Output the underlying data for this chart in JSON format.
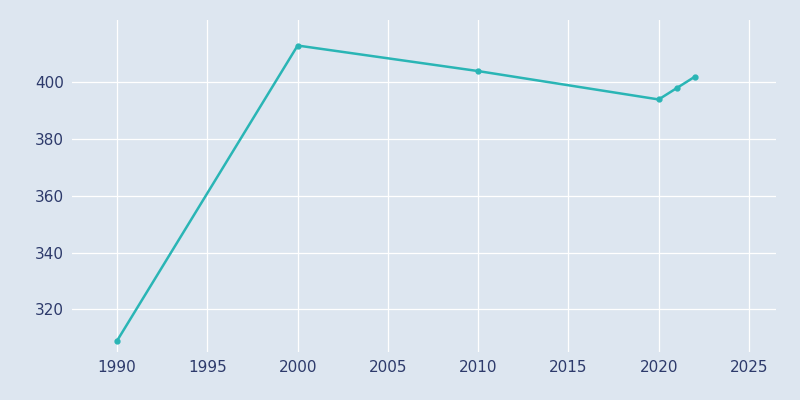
{
  "years": [
    1990,
    2000,
    2010,
    2020,
    2021,
    2022
  ],
  "population": [
    309,
    413,
    404,
    394,
    398,
    402
  ],
  "line_color": "#2ab5b5",
  "marker": "o",
  "markersize": 3.5,
  "linewidth": 1.8,
  "xlabel": "",
  "ylabel": "",
  "xlim": [
    1987.5,
    2026.5
  ],
  "ylim": [
    305,
    422
  ],
  "xticks": [
    1990,
    1995,
    2000,
    2005,
    2010,
    2015,
    2020,
    2025
  ],
  "yticks": [
    320,
    340,
    360,
    380,
    400
  ],
  "bg_color": "#dde6f0",
  "fig_bg_color": "#dde6f0",
  "grid_color": "#ffffff",
  "grid_linewidth": 0.9,
  "tick_color": "#2d3a6b",
  "tick_fontsize": 11
}
